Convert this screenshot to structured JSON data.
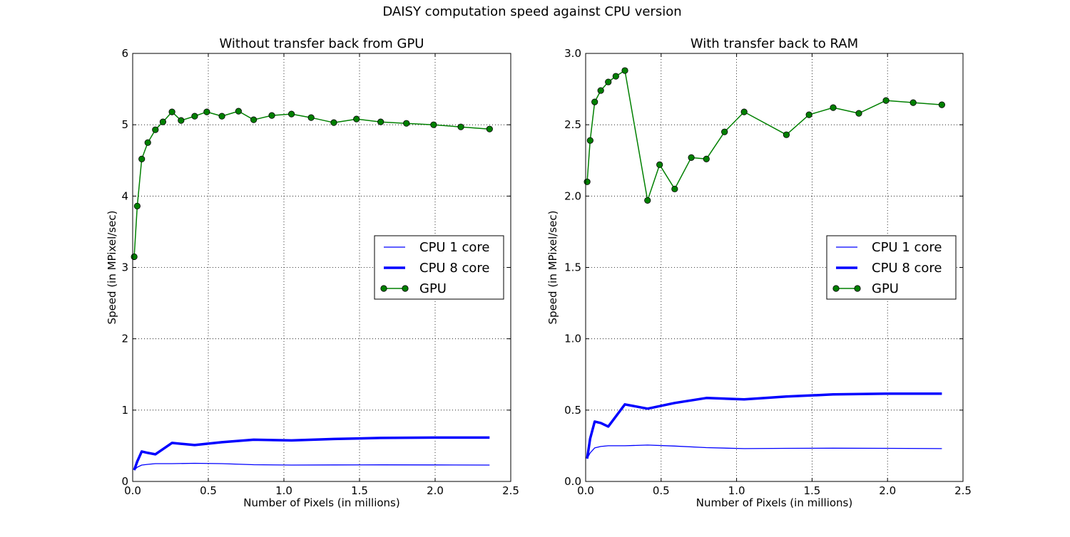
{
  "figure": {
    "title": "DAISY computation speed against CPU version"
  },
  "chart_data": [
    {
      "type": "line",
      "title": "Without transfer back from GPU",
      "xlabel": "Number of Pixels (in millions)",
      "ylabel": "Speed (in MPixel/sec)",
      "xlim": [
        0,
        2.5
      ],
      "ylim": [
        0,
        6
      ],
      "xticks": [
        "0.0",
        "0.5",
        "1.0",
        "1.5",
        "2.0",
        "2.5"
      ],
      "yticks": [
        "0",
        "1",
        "2",
        "3",
        "4",
        "5",
        "6"
      ],
      "grid": true,
      "legend_position": "center-right",
      "series": [
        {
          "name": "CPU 1 core",
          "color": "#0000ff",
          "style": "thin-line",
          "x": [
            0.01,
            0.03,
            0.06,
            0.1,
            0.15,
            0.2,
            0.26,
            0.41,
            0.59,
            0.8,
            1.05,
            1.33,
            1.64,
            1.99,
            2.36
          ],
          "y": [
            0.16,
            0.2,
            0.23,
            0.24,
            0.25,
            0.25,
            0.25,
            0.255,
            0.25,
            0.235,
            0.23,
            0.232,
            0.233,
            0.232,
            0.23
          ]
        },
        {
          "name": "CPU 8 core",
          "color": "#0000ff",
          "style": "thick-line",
          "x": [
            0.01,
            0.03,
            0.06,
            0.1,
            0.15,
            0.26,
            0.41,
            0.59,
            0.8,
            1.05,
            1.33,
            1.64,
            1.99,
            2.36
          ],
          "y": [
            0.16,
            0.28,
            0.42,
            0.4,
            0.38,
            0.54,
            0.51,
            0.55,
            0.585,
            0.575,
            0.595,
            0.61,
            0.615,
            0.615
          ]
        },
        {
          "name": "GPU",
          "color": "#008000",
          "style": "line-circle",
          "x": [
            0.01,
            0.03,
            0.06,
            0.1,
            0.15,
            0.2,
            0.26,
            0.32,
            0.41,
            0.49,
            0.59,
            0.7,
            0.8,
            0.92,
            1.05,
            1.18,
            1.33,
            1.48,
            1.64,
            1.81,
            1.99,
            2.17,
            2.36
          ],
          "y": [
            3.15,
            3.86,
            4.52,
            4.75,
            4.93,
            5.04,
            5.18,
            5.06,
            5.12,
            5.18,
            5.12,
            5.19,
            5.07,
            5.13,
            5.15,
            5.1,
            5.03,
            5.08,
            5.04,
            5.02,
            5.0,
            4.97,
            4.94
          ]
        }
      ]
    },
    {
      "type": "line",
      "title": "With transfer back to RAM",
      "xlabel": "Number of Pixels (in millions)",
      "ylabel": "Speed (in MPixel/sec)",
      "xlim": [
        0,
        2.5
      ],
      "ylim": [
        0,
        3
      ],
      "xticks": [
        "0.0",
        "0.5",
        "1.0",
        "1.5",
        "2.0",
        "2.5"
      ],
      "yticks": [
        "0.0",
        "0.5",
        "1.0",
        "1.5",
        "2.0",
        "2.5",
        "3.0"
      ],
      "grid": true,
      "legend_position": "center-right",
      "series": [
        {
          "name": "CPU 1 core",
          "color": "#0000ff",
          "style": "thin-line",
          "x": [
            0.01,
            0.03,
            0.06,
            0.1,
            0.15,
            0.2,
            0.26,
            0.41,
            0.59,
            0.8,
            1.05,
            1.33,
            1.64,
            1.99,
            2.36
          ],
          "y": [
            0.16,
            0.2,
            0.235,
            0.245,
            0.25,
            0.25,
            0.25,
            0.255,
            0.248,
            0.237,
            0.23,
            0.232,
            0.233,
            0.232,
            0.23
          ]
        },
        {
          "name": "CPU 8 core",
          "color": "#0000ff",
          "style": "thick-line",
          "x": [
            0.01,
            0.03,
            0.06,
            0.1,
            0.15,
            0.26,
            0.41,
            0.59,
            0.8,
            1.05,
            1.33,
            1.64,
            1.99,
            2.36
          ],
          "y": [
            0.16,
            0.3,
            0.42,
            0.41,
            0.385,
            0.54,
            0.51,
            0.55,
            0.585,
            0.575,
            0.595,
            0.61,
            0.615,
            0.615
          ]
        },
        {
          "name": "GPU",
          "color": "#008000",
          "style": "line-circle",
          "x": [
            0.01,
            0.03,
            0.06,
            0.1,
            0.15,
            0.2,
            0.26,
            0.41,
            0.49,
            0.59,
            0.7,
            0.8,
            0.92,
            1.05,
            1.33,
            1.48,
            1.64,
            1.81,
            1.99,
            2.17,
            2.36
          ],
          "y": [
            2.1,
            2.39,
            2.66,
            2.74,
            2.8,
            2.84,
            2.88,
            1.97,
            2.22,
            2.05,
            2.27,
            2.26,
            2.45,
            2.59,
            2.43,
            2.57,
            2.62,
            2.58,
            2.67,
            2.655,
            2.64
          ]
        }
      ]
    }
  ]
}
